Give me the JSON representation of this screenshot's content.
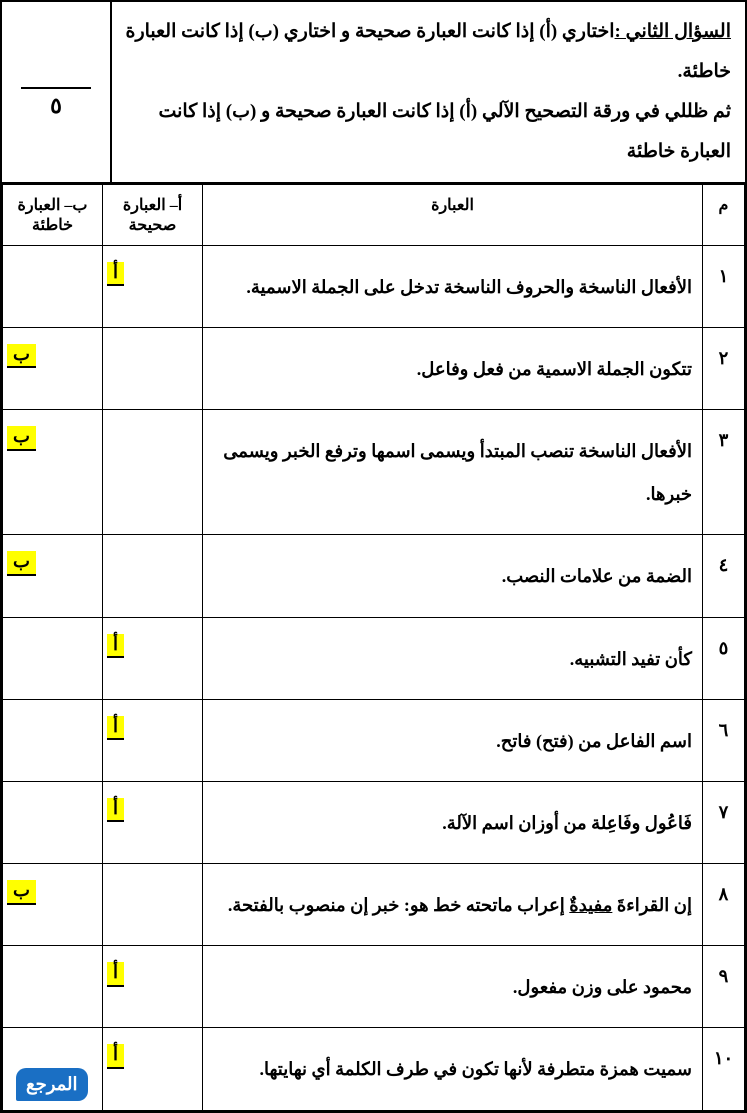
{
  "header": {
    "title_label": "السؤال الثاني :",
    "line1_rest": "اختاري (أ) إذا كانت العبارة صحيحة و اختاري (ب) إذا كانت العبارة خاطئة.",
    "line2": "ثم ظللي في ورقة التصحيح الآلي (أ) إذا كانت العبارة صحيحة و (ب) إذا كانت العبارة خاطئة",
    "score_denominator": "٥"
  },
  "columns": {
    "num": "م",
    "statement": "العبارة",
    "correct": "أ– العبارة صحيحة",
    "wrong": "ب– العبارة خاطئة"
  },
  "answer_labels": {
    "a": "أ",
    "b": "ب"
  },
  "rows": [
    {
      "n": "١",
      "text": "الأفعال الناسخة والحروف الناسخة تدخل على الجملة الاسمية.",
      "ans": "a"
    },
    {
      "n": "٢",
      "text": "تتكون الجملة الاسمية من فعل وفاعل.",
      "ans": "b"
    },
    {
      "n": "٣",
      "text": "الأفعال الناسخة تنصب المبتدأ ويسمى اسمها وترفع الخبر ويسمى خبرها.",
      "ans": "b"
    },
    {
      "n": "٤",
      "text": "الضمة من علامات النصب.",
      "ans": "b"
    },
    {
      "n": "٥",
      "text": "كأن تفيد التشبيه.",
      "ans": "a"
    },
    {
      "n": "٦",
      "text": "اسم الفاعل من (فتح) فاتح.",
      "ans": "a"
    },
    {
      "n": "٧",
      "text": "فَاعُول وفَاعِلة من أوزان اسم الآلة.",
      "ans": "a"
    },
    {
      "n": "٨",
      "text_html": "إن القراءةَ <span class='ul'>مفيدةٌ</span> إعراب ماتحته خط هو: خبر إن منصوب بالفتحة.",
      "ans": "b"
    },
    {
      "n": "٩",
      "text": "محمود على وزن مفعول.",
      "ans": "a"
    },
    {
      "n": "١٠",
      "text": "سميت همزة متطرفة لأنها تكون في طرف الكلمة أي نهايتها.",
      "ans": "a"
    }
  ],
  "logo_text": "المرجع",
  "style": {
    "highlight_color": "#ffff00",
    "border_color": "#000000",
    "background": "#ffffff",
    "logo_bg": "#1a6fc4",
    "logo_fg": "#ffffff",
    "font_size_body": 18,
    "font_size_header": 19
  }
}
